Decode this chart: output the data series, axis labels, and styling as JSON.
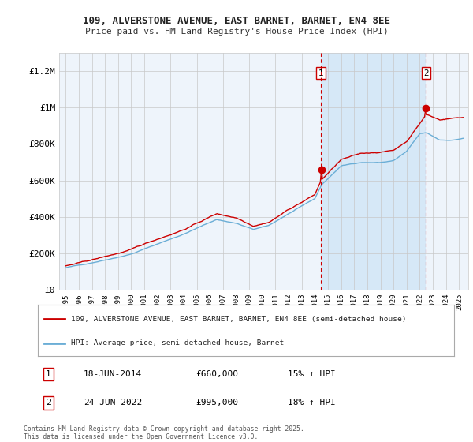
{
  "title1": "109, ALVERSTONE AVENUE, EAST BARNET, BARNET, EN4 8EE",
  "title2": "Price paid vs. HM Land Registry's House Price Index (HPI)",
  "legend_line1": "109, ALVERSTONE AVENUE, EAST BARNET, BARNET, EN4 8EE (semi-detached house)",
  "legend_line2": "HPI: Average price, semi-detached house, Barnet",
  "annotation1_label": "1",
  "annotation1_date": "18-JUN-2014",
  "annotation1_price": "£660,000",
  "annotation1_hpi": "15% ↑ HPI",
  "annotation2_label": "2",
  "annotation2_date": "24-JUN-2022",
  "annotation2_price": "£995,000",
  "annotation2_hpi": "18% ↑ HPI",
  "footer": "Contains HM Land Registry data © Crown copyright and database right 2025.\nThis data is licensed under the Open Government Licence v3.0.",
  "sale1_year": 2014.47,
  "sale1_value": 660000,
  "sale2_year": 2022.48,
  "sale2_value": 995000,
  "hpi_color": "#6baed6",
  "price_color": "#cc0000",
  "background_color": "#ffffff",
  "plot_bg_color": "#eef4fb",
  "shade_color": "#d6e8f7",
  "grid_color": "#c8c8c8",
  "dashed_line_color": "#cc0000",
  "ylim": [
    0,
    1300000
  ],
  "xlim_start": 1994.5,
  "xlim_end": 2025.7,
  "yticks": [
    0,
    200000,
    400000,
    600000,
    800000,
    1000000,
    1200000
  ],
  "ylabels": [
    "£0",
    "£200K",
    "£400K",
    "£600K",
    "£800K",
    "£1M",
    "£1.2M"
  ]
}
